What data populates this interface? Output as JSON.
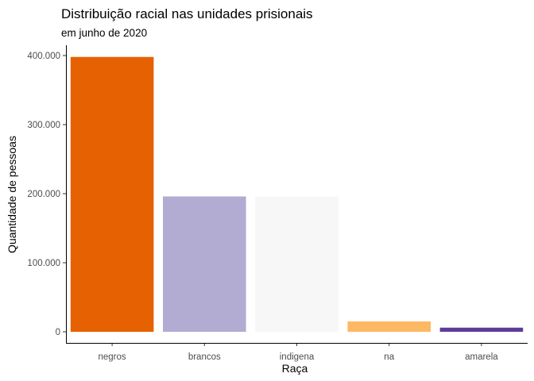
{
  "chart_data": {
    "type": "bar",
    "title": "Distribuição racial nas unidades prisionais",
    "subtitle": "em junho de 2020",
    "xlabel": "Raça",
    "ylabel": "Quantidade de pessoas",
    "categories": [
      "negros",
      "brancos",
      "indigena",
      "na",
      "amarela"
    ],
    "values": [
      398000,
      196000,
      196000,
      15000,
      6000
    ],
    "colors": [
      "#e66101",
      "#b2abd2",
      "#f7f7f7",
      "#fdb863",
      "#5e3c99"
    ],
    "ylim": [
      0,
      400000
    ],
    "yticks": [
      0,
      100000,
      200000,
      300000,
      400000
    ],
    "ytick_labels": [
      "0",
      "100.000",
      "200.000",
      "300.000",
      "400.000"
    ],
    "grid": false,
    "legend": "none"
  }
}
